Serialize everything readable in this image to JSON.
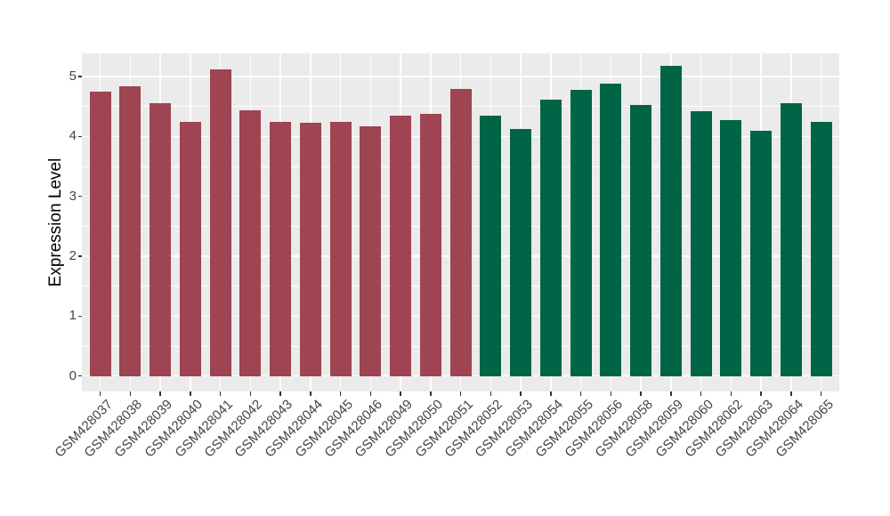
{
  "chart_data": {
    "type": "bar",
    "title": "",
    "xlabel": "",
    "ylabel": "Expression Level",
    "ylim": [
      0,
      5.39
    ],
    "ytick_values": [
      0,
      1,
      2,
      3,
      4,
      5
    ],
    "ytick_labels": [
      "0",
      "1",
      "2",
      "3",
      "4",
      "5"
    ],
    "grid": "horizontal major+minor, vertical major at category centers",
    "legend": "none",
    "panel_background": "#EBEBEB",
    "gridline_color": "#FFFFFF",
    "tick_mark_color": "#333333",
    "group_colors": {
      "left_group": "#9E4452",
      "right_group": "#006546"
    },
    "bars": [
      {
        "label": "GSM428037",
        "value": 4.75,
        "color": "#9E4452"
      },
      {
        "label": "GSM428038",
        "value": 4.83,
        "color": "#9E4452"
      },
      {
        "label": "GSM428039",
        "value": 4.55,
        "color": "#9E4452"
      },
      {
        "label": "GSM428040",
        "value": 4.24,
        "color": "#9E4452"
      },
      {
        "label": "GSM428041",
        "value": 5.12,
        "color": "#9E4452"
      },
      {
        "label": "GSM428042",
        "value": 4.44,
        "color": "#9E4452"
      },
      {
        "label": "GSM428043",
        "value": 4.24,
        "color": "#9E4452"
      },
      {
        "label": "GSM428044",
        "value": 4.23,
        "color": "#9E4452"
      },
      {
        "label": "GSM428045",
        "value": 4.24,
        "color": "#9E4452"
      },
      {
        "label": "GSM428046",
        "value": 4.17,
        "color": "#9E4452"
      },
      {
        "label": "GSM428049",
        "value": 4.34,
        "color": "#9E4452"
      },
      {
        "label": "GSM428050",
        "value": 4.37,
        "color": "#9E4452"
      },
      {
        "label": "GSM428051",
        "value": 4.79,
        "color": "#9E4452"
      },
      {
        "label": "GSM428052",
        "value": 4.34,
        "color": "#006546"
      },
      {
        "label": "GSM428053",
        "value": 4.12,
        "color": "#006546"
      },
      {
        "label": "GSM428054",
        "value": 4.61,
        "color": "#006546"
      },
      {
        "label": "GSM428055",
        "value": 4.78,
        "color": "#006546"
      },
      {
        "label": "GSM428056",
        "value": 4.88,
        "color": "#006546"
      },
      {
        "label": "GSM428058",
        "value": 4.52,
        "color": "#006546"
      },
      {
        "label": "GSM428059",
        "value": 5.18,
        "color": "#006546"
      },
      {
        "label": "GSM428060",
        "value": 4.42,
        "color": "#006546"
      },
      {
        "label": "GSM428062",
        "value": 4.27,
        "color": "#006546"
      },
      {
        "label": "GSM428063",
        "value": 4.1,
        "color": "#006546"
      },
      {
        "label": "GSM428064",
        "value": 4.56,
        "color": "#006546"
      },
      {
        "label": "GSM428065",
        "value": 4.25,
        "color": "#006546"
      }
    ]
  }
}
